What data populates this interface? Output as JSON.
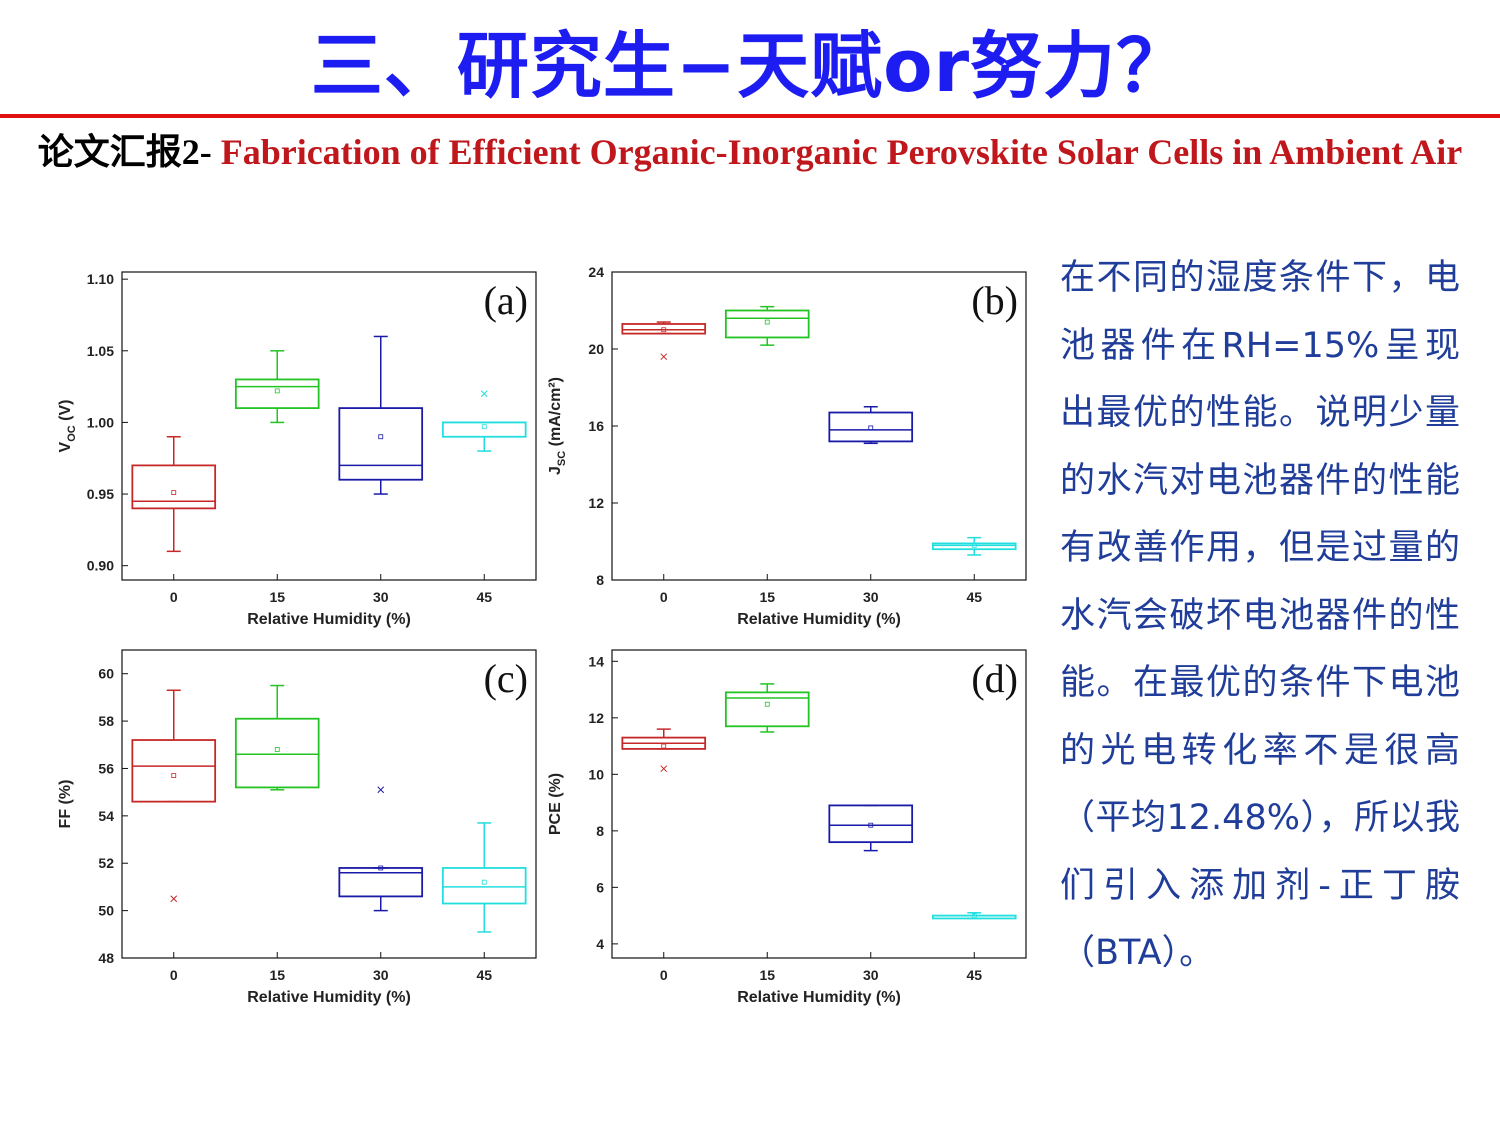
{
  "slide": {
    "title": "三、研究生−天赋or努力？",
    "subtitle_lead": "论文汇报2- ",
    "subtitle_paper": "Fabrication of Efficient Organic-Inorganic Perovskite Solar Cells in Ambient Air",
    "side_text": "在不同的湿度条件下，电池器件在RH=15%呈现出最优的性能。说明少量的水汽对电池器件的性能有改善作用，但是过量的水汽会破坏电池器件的性能。在最优的条件下电池的光电转化率不是很高（平均12.48%），所以我们引入添加剂-正丁胺（BTA）。",
    "colors": {
      "title": "#1d1df2",
      "rule": "#e01010",
      "paper": "#c0171c",
      "side_text": "#1f3d99"
    }
  },
  "chart_data": [
    {
      "type": "box",
      "panel": "(a)",
      "xlabel": "Relative Humidity (%)",
      "ylabel_main": "V",
      "ylabel_sub": "OC",
      "ylabel_unit": " (V)",
      "categories": [
        "0",
        "15",
        "30",
        "45"
      ],
      "colors": [
        "#c62828",
        "#22c422",
        "#1a1aa8",
        "#22dede"
      ],
      "ylim": [
        0.89,
        1.105
      ],
      "yticks": [
        "0.90",
        "0.95",
        "1.00",
        "1.05",
        "1.10"
      ],
      "boxes": [
        {
          "min": 0.91,
          "q1": 0.94,
          "median": 0.945,
          "q3": 0.97,
          "max": 0.99,
          "mean": 0.951,
          "outliers": []
        },
        {
          "min": 1.0,
          "q1": 1.01,
          "median": 1.025,
          "q3": 1.03,
          "max": 1.05,
          "mean": 1.022,
          "outliers": []
        },
        {
          "min": 0.95,
          "q1": 0.96,
          "median": 0.97,
          "q3": 1.01,
          "max": 1.06,
          "mean": 0.99,
          "outliers": []
        },
        {
          "min": 0.98,
          "q1": 0.99,
          "median": 1.0,
          "q3": 1.0,
          "max": 1.0,
          "mean": 0.997,
          "outliers": [
            1.02
          ]
        }
      ]
    },
    {
      "type": "box",
      "panel": "(b)",
      "xlabel": "Relative Humidity (%)",
      "ylabel_main": "J",
      "ylabel_sub": "SC",
      "ylabel_unit": " (mA/cm²)",
      "categories": [
        "0",
        "15",
        "30",
        "45"
      ],
      "colors": [
        "#c62828",
        "#22c422",
        "#1a1aa8",
        "#22dede"
      ],
      "ylim": [
        8,
        24
      ],
      "yticks": [
        "8",
        "12",
        "16",
        "20",
        "24"
      ],
      "boxes": [
        {
          "min": 20.8,
          "q1": 20.8,
          "median": 21.0,
          "q3": 21.3,
          "max": 21.4,
          "mean": 21.0,
          "outliers": [
            19.6
          ]
        },
        {
          "min": 20.2,
          "q1": 20.6,
          "median": 21.6,
          "q3": 22.0,
          "max": 22.2,
          "mean": 21.4,
          "outliers": []
        },
        {
          "min": 15.1,
          "q1": 15.2,
          "median": 15.8,
          "q3": 16.7,
          "max": 17.0,
          "mean": 15.9,
          "outliers": []
        },
        {
          "min": 9.3,
          "q1": 9.6,
          "median": 9.8,
          "q3": 9.9,
          "max": 10.2,
          "mean": 9.8,
          "outliers": []
        }
      ]
    },
    {
      "type": "box",
      "panel": "(c)",
      "xlabel": "Relative Humidity (%)",
      "ylabel_main": "FF (%)",
      "ylabel_sub": "",
      "ylabel_unit": "",
      "categories": [
        "0",
        "15",
        "30",
        "45"
      ],
      "colors": [
        "#c62828",
        "#22c422",
        "#1a1aa8",
        "#22dede"
      ],
      "ylim": [
        48,
        61
      ],
      "yticks": [
        "48",
        "50",
        "52",
        "54",
        "56",
        "58",
        "60"
      ],
      "boxes": [
        {
          "min": 54.6,
          "q1": 54.6,
          "median": 56.1,
          "q3": 57.2,
          "max": 59.3,
          "mean": 55.7,
          "outliers": [
            50.5
          ]
        },
        {
          "min": 55.1,
          "q1": 55.2,
          "median": 56.6,
          "q3": 58.1,
          "max": 59.5,
          "mean": 56.8,
          "outliers": []
        },
        {
          "min": 50.0,
          "q1": 50.6,
          "median": 51.6,
          "q3": 51.8,
          "max": 51.8,
          "mean": 51.8,
          "outliers": [
            55.1
          ]
        },
        {
          "min": 49.1,
          "q1": 50.3,
          "median": 51.0,
          "q3": 51.8,
          "max": 53.7,
          "mean": 51.2,
          "outliers": []
        }
      ]
    },
    {
      "type": "box",
      "panel": "(d)",
      "xlabel": "Relative Humidity (%)",
      "ylabel_main": "PCE (%)",
      "ylabel_sub": "",
      "ylabel_unit": "",
      "categories": [
        "0",
        "15",
        "30",
        "45"
      ],
      "colors": [
        "#c62828",
        "#22c422",
        "#1a1aa8",
        "#22dede"
      ],
      "ylim": [
        3.5,
        14.4
      ],
      "yticks": [
        "4",
        "6",
        "8",
        "10",
        "12",
        "14"
      ],
      "boxes": [
        {
          "min": 10.9,
          "q1": 10.9,
          "median": 11.1,
          "q3": 11.3,
          "max": 11.6,
          "mean": 11.0,
          "outliers": [
            10.2
          ]
        },
        {
          "min": 11.5,
          "q1": 11.7,
          "median": 12.7,
          "q3": 12.9,
          "max": 13.2,
          "mean": 12.48,
          "outliers": []
        },
        {
          "min": 7.3,
          "q1": 7.6,
          "median": 8.2,
          "q3": 8.9,
          "max": 8.9,
          "mean": 8.2,
          "outliers": []
        },
        {
          "min": 4.9,
          "q1": 4.9,
          "median": 5.0,
          "q3": 5.0,
          "max": 5.1,
          "mean": 5.0,
          "outliers": []
        }
      ]
    }
  ]
}
